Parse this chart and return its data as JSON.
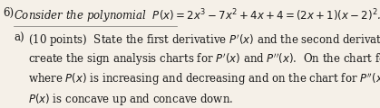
{
  "background_color": "#f5f0e8",
  "problem_number": "6)",
  "problem_text": "Consider the polynomial  $P(x) = 2x^3 - 7x^2 + 4x + 4 = (2x+1)(x-2)^2$.",
  "part_a_label": "a)",
  "part_a_points": "(10 points)",
  "part_a_line1": "State the first derivative $P'(x)$ and the second derivative $P''(x)$ and then",
  "part_a_line2": "create the sign analysis charts for $P'(x)$ and $P''(x)$.  On the chart for $P'(x)$ indicate",
  "part_a_line3": "where $P(x)$ is increasing and decreasing and on the chart for $P''(x)$ indicate where",
  "part_a_line4": "$P(x)$ is concave up and concave down.",
  "text_color": "#1a1a1a",
  "font_size_main": 8.5,
  "font_size_part": 8.5
}
